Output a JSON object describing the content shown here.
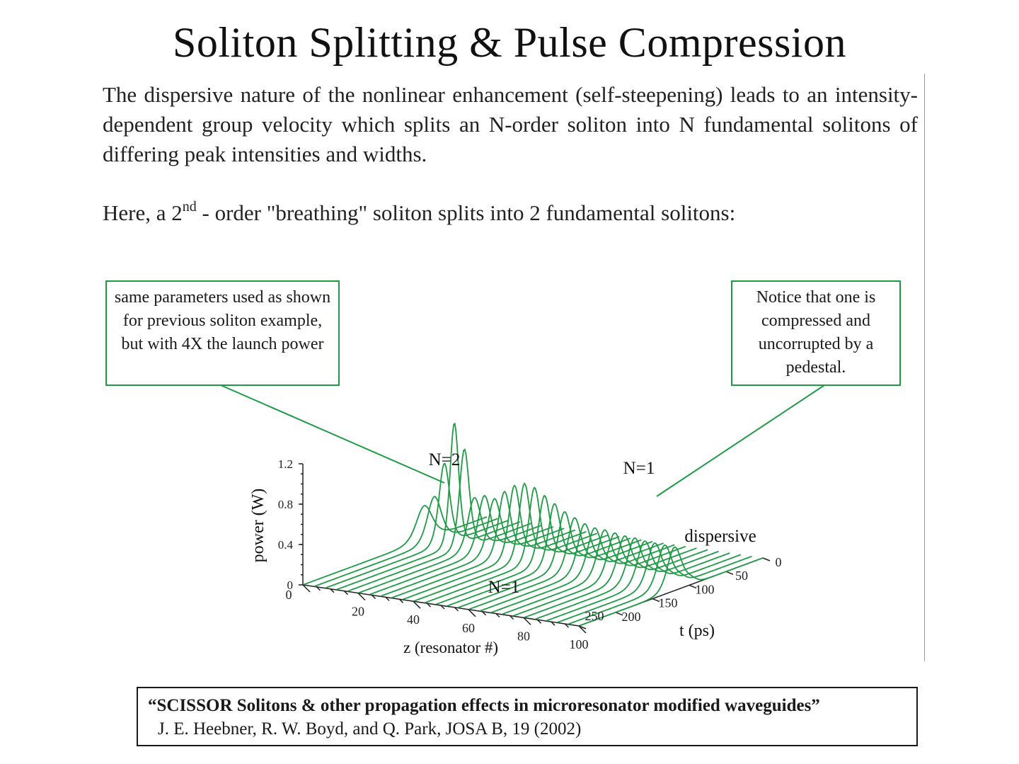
{
  "title": "Soliton Splitting & Pulse Compression",
  "paragraph": "The dispersive nature of the nonlinear enhancement (self-steepening) leads to an intensity-dependent group velocity which splits an N-order soliton into N fundamental solitons of differing peak intensities and widths.",
  "statement": {
    "before": "Here, a 2",
    "sup": "nd",
    "after": " - order \"breathing\" soliton splits into 2 fundamental solitons:"
  },
  "notes": {
    "left": "same parameters used as shown for previous soliton example, but with 4X the launch power",
    "right": "Notice that one is compressed and uncorrupted by a pedestal."
  },
  "colors": {
    "accent": "#1f9a45",
    "text": "#1a1a1a"
  },
  "figure": {
    "labels": {
      "n2": "N=2",
      "n1_top": "N=1",
      "n1_bottom": "N=1",
      "dispersive": "dispersive"
    },
    "ylabel": "power (W)",
    "zlabel": "z (resonator #)",
    "tlabel": "t (ps)",
    "power_ticks": [
      "0",
      "0.4",
      "0.8",
      "1.2"
    ],
    "z_ticks": [
      "0",
      "20",
      "40",
      "60",
      "80",
      "100"
    ],
    "t_ticks": [
      "0",
      "50",
      "100",
      "150",
      "200",
      "250"
    ]
  },
  "chart_data": {
    "type": "line",
    "xlabel": "z (resonator #)",
    "ylabel": "power (W)",
    "zlabel": "t (ps)",
    "xlim": [
      0,
      100
    ],
    "ylim": [
      0,
      1.2
    ],
    "tlim": [
      0,
      250
    ],
    "series": [
      {
        "z": 0,
        "peak_power": 0.34
      },
      {
        "z": 4,
        "peak_power": 0.45
      },
      {
        "z": 8,
        "peak_power": 0.8
      },
      {
        "z": 12,
        "peak_power": 1.22
      },
      {
        "z": 16,
        "peak_power": 0.98
      },
      {
        "z": 20,
        "peak_power": 0.52
      },
      {
        "z": 24,
        "peak_power": 0.56
      },
      {
        "z": 28,
        "peak_power": 0.55
      },
      {
        "z": 32,
        "peak_power": 0.64
      },
      {
        "z": 36,
        "peak_power": 0.72
      },
      {
        "z": 40,
        "peak_power": 0.76
      },
      {
        "z": 44,
        "peak_power": 0.74
      },
      {
        "z": 48,
        "peak_power": 0.68
      },
      {
        "z": 52,
        "peak_power": 0.62
      },
      {
        "z": 56,
        "peak_power": 0.56
      },
      {
        "z": 60,
        "peak_power": 0.52
      },
      {
        "z": 64,
        "peak_power": 0.48
      },
      {
        "z": 68,
        "peak_power": 0.46
      },
      {
        "z": 72,
        "peak_power": 0.46
      },
      {
        "z": 76,
        "peak_power": 0.45
      },
      {
        "z": 80,
        "peak_power": 0.44
      },
      {
        "z": 84,
        "peak_power": 0.44
      },
      {
        "z": 88,
        "peak_power": 0.43
      },
      {
        "z": 92,
        "peak_power": 0.43
      },
      {
        "z": 96,
        "peak_power": 0.43
      },
      {
        "z": 100,
        "peak_power": 0.43
      }
    ]
  },
  "citation": {
    "title": "“SCISSOR Solitons & other propagation effects in  microresonator modified waveguides”",
    "authors": "J. E. Heebner, R. W. Boyd, and Q. Park, JOSA B, 19 (2002)"
  }
}
